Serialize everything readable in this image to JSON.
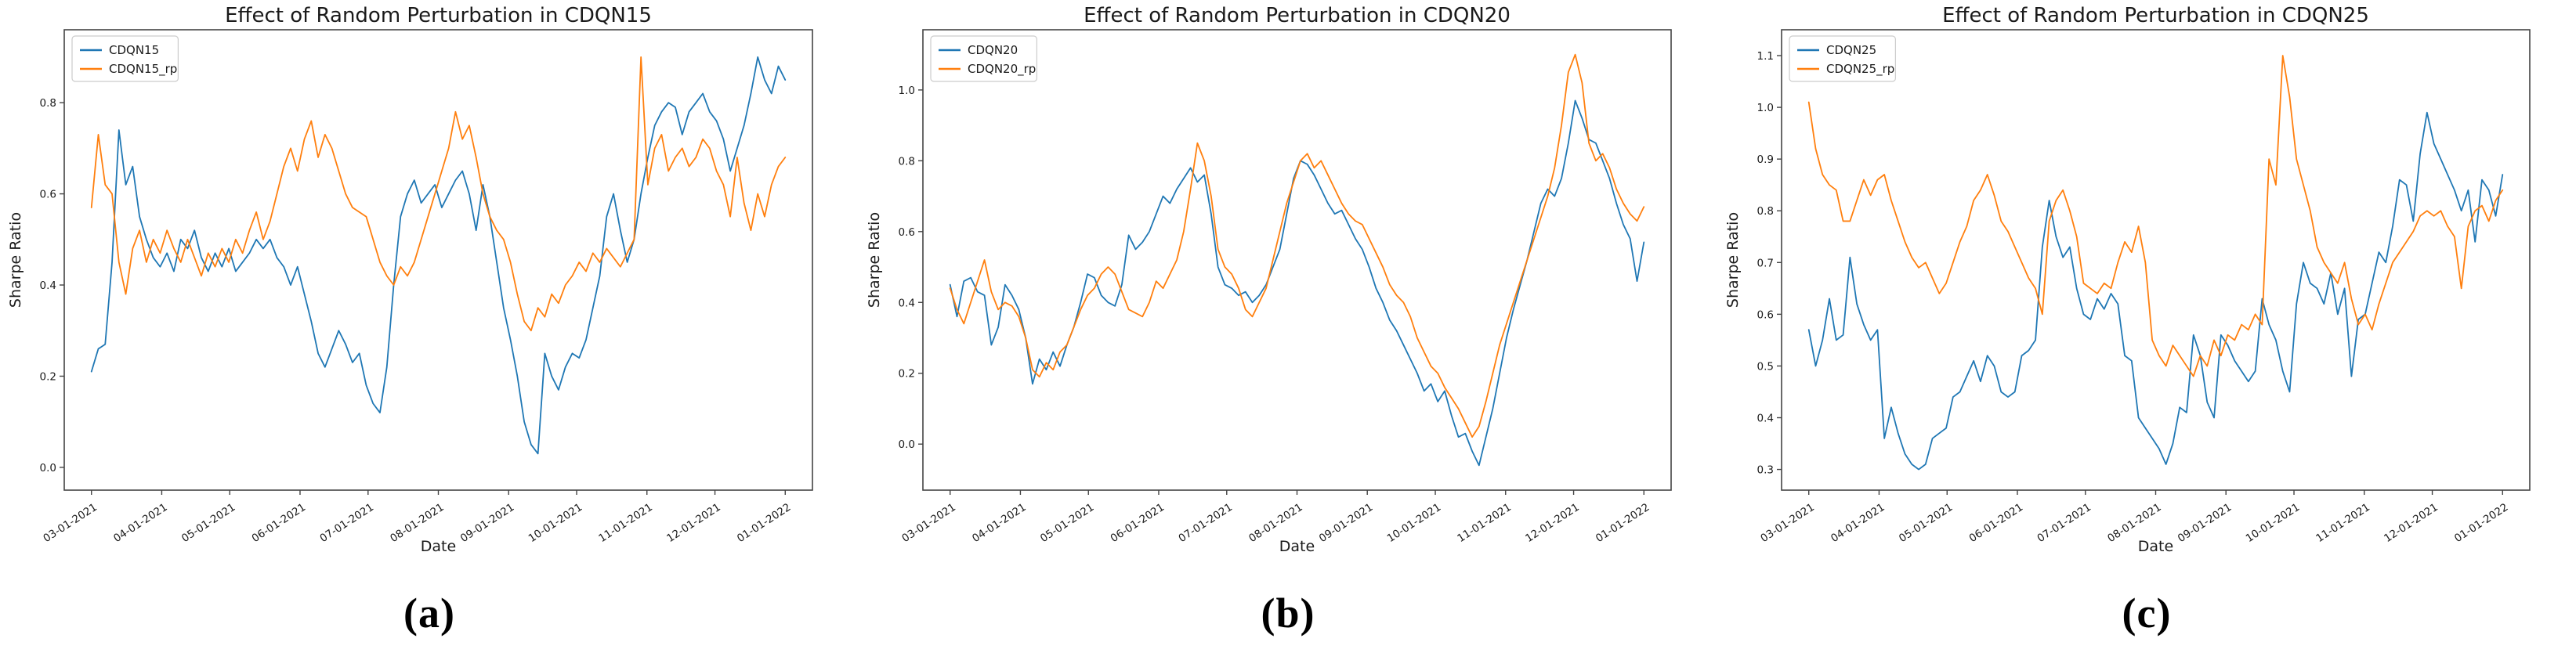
{
  "figure": {
    "captions": [
      "(a)",
      "(b)",
      "(c)"
    ]
  },
  "chart_data": [
    {
      "type": "line",
      "title": "Effect of Random Perturbation in CDQN15",
      "xlabel": "Date",
      "ylabel": "Sharpe Ratio",
      "legend_position": "upper left",
      "grid": false,
      "x_tick_labels": [
        "03-01-2021",
        "04-01-2021",
        "05-01-2021",
        "06-01-2021",
        "07-01-2021",
        "08-01-2021",
        "09-01-2021",
        "10-01-2021",
        "11-01-2021",
        "12-01-2021",
        "01-01-2022"
      ],
      "x_tick_days": [
        0,
        31,
        61,
        92,
        122,
        153,
        184,
        214,
        245,
        275,
        306
      ],
      "x_span_days": 306,
      "x_margin_days": 12,
      "ylim": [
        -0.05,
        0.96
      ],
      "y_tick_values": [
        0.0,
        0.2,
        0.4,
        0.6,
        0.8
      ],
      "y_tick_labels": [
        "0.0",
        "0.2",
        "0.4",
        "0.6",
        "0.8"
      ],
      "series": [
        {
          "name": "CDQN15",
          "color": "#1f77b4",
          "values": [
            0.21,
            0.26,
            0.27,
            0.45,
            0.74,
            0.62,
            0.66,
            0.55,
            0.5,
            0.46,
            0.44,
            0.47,
            0.43,
            0.5,
            0.48,
            0.52,
            0.46,
            0.43,
            0.47,
            0.44,
            0.48,
            0.43,
            0.45,
            0.47,
            0.5,
            0.48,
            0.5,
            0.46,
            0.44,
            0.4,
            0.44,
            0.38,
            0.32,
            0.25,
            0.22,
            0.26,
            0.3,
            0.27,
            0.23,
            0.25,
            0.18,
            0.14,
            0.12,
            0.22,
            0.4,
            0.55,
            0.6,
            0.63,
            0.58,
            0.6,
            0.62,
            0.57,
            0.6,
            0.63,
            0.65,
            0.6,
            0.52,
            0.62,
            0.55,
            0.45,
            0.35,
            0.28,
            0.2,
            0.1,
            0.05,
            0.03,
            0.25,
            0.2,
            0.17,
            0.22,
            0.25,
            0.24,
            0.28,
            0.35,
            0.42,
            0.55,
            0.6,
            0.52,
            0.45,
            0.5,
            0.6,
            0.68,
            0.75,
            0.78,
            0.8,
            0.79,
            0.73,
            0.78,
            0.8,
            0.82,
            0.78,
            0.76,
            0.72,
            0.65,
            0.7,
            0.75,
            0.82,
            0.9,
            0.85,
            0.82,
            0.88,
            0.85
          ]
        },
        {
          "name": "CDQN15_rp",
          "color": "#ff7f0e",
          "values": [
            0.57,
            0.73,
            0.62,
            0.6,
            0.45,
            0.38,
            0.48,
            0.52,
            0.45,
            0.5,
            0.47,
            0.52,
            0.48,
            0.45,
            0.5,
            0.46,
            0.42,
            0.47,
            0.44,
            0.48,
            0.45,
            0.5,
            0.47,
            0.52,
            0.56,
            0.5,
            0.54,
            0.6,
            0.66,
            0.7,
            0.65,
            0.72,
            0.76,
            0.68,
            0.73,
            0.7,
            0.65,
            0.6,
            0.57,
            0.56,
            0.55,
            0.5,
            0.45,
            0.42,
            0.4,
            0.44,
            0.42,
            0.45,
            0.5,
            0.55,
            0.6,
            0.65,
            0.7,
            0.78,
            0.72,
            0.75,
            0.68,
            0.6,
            0.55,
            0.52,
            0.5,
            0.45,
            0.38,
            0.32,
            0.3,
            0.35,
            0.33,
            0.38,
            0.36,
            0.4,
            0.42,
            0.45,
            0.43,
            0.47,
            0.45,
            0.48,
            0.46,
            0.44,
            0.47,
            0.5,
            0.9,
            0.62,
            0.7,
            0.73,
            0.65,
            0.68,
            0.7,
            0.66,
            0.68,
            0.72,
            0.7,
            0.65,
            0.62,
            0.55,
            0.68,
            0.58,
            0.52,
            0.6,
            0.55,
            0.62,
            0.66,
            0.68
          ]
        }
      ]
    },
    {
      "type": "line",
      "title": "Effect of Random Perturbation in CDQN20",
      "xlabel": "Date",
      "ylabel": "Sharpe Ratio",
      "legend_position": "upper left",
      "grid": false,
      "x_tick_labels": [
        "03-01-2021",
        "04-01-2021",
        "05-01-2021",
        "06-01-2021",
        "07-01-2021",
        "08-01-2021",
        "09-01-2021",
        "10-01-2021",
        "11-01-2021",
        "12-01-2021",
        "01-01-2022"
      ],
      "x_tick_days": [
        0,
        31,
        61,
        92,
        122,
        153,
        184,
        214,
        245,
        275,
        306
      ],
      "x_span_days": 306,
      "x_margin_days": 12,
      "ylim": [
        -0.13,
        1.17
      ],
      "y_tick_values": [
        0.0,
        0.2,
        0.4,
        0.6,
        0.8,
        1.0
      ],
      "y_tick_labels": [
        "0.0",
        "0.2",
        "0.4",
        "0.6",
        "0.8",
        "1.0"
      ],
      "series": [
        {
          "name": "CDQN20",
          "color": "#1f77b4",
          "values": [
            0.45,
            0.36,
            0.46,
            0.47,
            0.43,
            0.42,
            0.28,
            0.33,
            0.45,
            0.42,
            0.38,
            0.3,
            0.17,
            0.24,
            0.21,
            0.26,
            0.22,
            0.28,
            0.33,
            0.4,
            0.48,
            0.47,
            0.42,
            0.4,
            0.39,
            0.45,
            0.59,
            0.55,
            0.57,
            0.6,
            0.65,
            0.7,
            0.68,
            0.72,
            0.75,
            0.78,
            0.74,
            0.76,
            0.65,
            0.5,
            0.45,
            0.44,
            0.42,
            0.43,
            0.4,
            0.42,
            0.45,
            0.5,
            0.55,
            0.65,
            0.75,
            0.8,
            0.79,
            0.76,
            0.72,
            0.68,
            0.65,
            0.66,
            0.62,
            0.58,
            0.55,
            0.5,
            0.44,
            0.4,
            0.35,
            0.32,
            0.28,
            0.24,
            0.2,
            0.15,
            0.17,
            0.12,
            0.15,
            0.08,
            0.02,
            0.03,
            -0.02,
            -0.06,
            0.02,
            0.1,
            0.2,
            0.3,
            0.38,
            0.45,
            0.52,
            0.6,
            0.68,
            0.72,
            0.7,
            0.75,
            0.85,
            0.97,
            0.92,
            0.86,
            0.85,
            0.8,
            0.75,
            0.68,
            0.62,
            0.58,
            0.46,
            0.57
          ]
        },
        {
          "name": "CDQN20_rp",
          "color": "#ff7f0e",
          "values": [
            0.44,
            0.38,
            0.34,
            0.4,
            0.46,
            0.52,
            0.43,
            0.38,
            0.4,
            0.39,
            0.36,
            0.3,
            0.21,
            0.19,
            0.23,
            0.21,
            0.26,
            0.28,
            0.33,
            0.38,
            0.42,
            0.44,
            0.48,
            0.5,
            0.48,
            0.43,
            0.38,
            0.37,
            0.36,
            0.4,
            0.46,
            0.44,
            0.48,
            0.52,
            0.6,
            0.72,
            0.85,
            0.8,
            0.7,
            0.55,
            0.5,
            0.48,
            0.44,
            0.38,
            0.36,
            0.4,
            0.44,
            0.52,
            0.6,
            0.68,
            0.74,
            0.8,
            0.82,
            0.78,
            0.8,
            0.76,
            0.72,
            0.68,
            0.65,
            0.63,
            0.62,
            0.58,
            0.54,
            0.5,
            0.45,
            0.42,
            0.4,
            0.36,
            0.3,
            0.26,
            0.22,
            0.2,
            0.16,
            0.13,
            0.1,
            0.06,
            0.02,
            0.05,
            0.12,
            0.2,
            0.28,
            0.34,
            0.4,
            0.46,
            0.52,
            0.58,
            0.64,
            0.7,
            0.78,
            0.9,
            1.05,
            1.1,
            1.02,
            0.85,
            0.8,
            0.82,
            0.78,
            0.72,
            0.68,
            0.65,
            0.63,
            0.67
          ]
        }
      ]
    },
    {
      "type": "line",
      "title": "Effect of Random Perturbation in CDQN25",
      "xlabel": "Date",
      "ylabel": "Sharpe Ratio",
      "legend_position": "upper left",
      "grid": false,
      "x_tick_labels": [
        "03-01-2021",
        "04-01-2021",
        "05-01-2021",
        "06-01-2021",
        "07-01-2021",
        "08-01-2021",
        "09-01-2021",
        "10-01-2021",
        "11-01-2021",
        "12-01-2021",
        "01-01-2022"
      ],
      "x_tick_days": [
        0,
        31,
        61,
        92,
        122,
        153,
        184,
        214,
        245,
        275,
        306
      ],
      "x_span_days": 306,
      "x_margin_days": 12,
      "ylim": [
        0.26,
        1.15
      ],
      "y_tick_values": [
        0.3,
        0.4,
        0.5,
        0.6,
        0.7,
        0.8,
        0.9,
        1.0,
        1.1
      ],
      "y_tick_labels": [
        "0.3",
        "0.4",
        "0.5",
        "0.6",
        "0.7",
        "0.8",
        "0.9",
        "1.0",
        "1.1"
      ],
      "series": [
        {
          "name": "CDQN25",
          "color": "#1f77b4",
          "values": [
            0.57,
            0.5,
            0.55,
            0.63,
            0.55,
            0.56,
            0.71,
            0.62,
            0.58,
            0.55,
            0.57,
            0.36,
            0.42,
            0.37,
            0.33,
            0.31,
            0.3,
            0.31,
            0.36,
            0.37,
            0.38,
            0.44,
            0.45,
            0.48,
            0.51,
            0.47,
            0.52,
            0.5,
            0.45,
            0.44,
            0.45,
            0.52,
            0.53,
            0.55,
            0.73,
            0.82,
            0.75,
            0.71,
            0.73,
            0.65,
            0.6,
            0.59,
            0.63,
            0.61,
            0.64,
            0.62,
            0.52,
            0.51,
            0.4,
            0.38,
            0.36,
            0.34,
            0.31,
            0.35,
            0.42,
            0.41,
            0.56,
            0.52,
            0.43,
            0.4,
            0.56,
            0.54,
            0.51,
            0.49,
            0.47,
            0.49,
            0.63,
            0.58,
            0.55,
            0.49,
            0.45,
            0.62,
            0.7,
            0.66,
            0.65,
            0.62,
            0.68,
            0.6,
            0.65,
            0.48,
            0.59,
            0.6,
            0.66,
            0.72,
            0.7,
            0.77,
            0.86,
            0.85,
            0.78,
            0.91,
            0.99,
            0.93,
            0.9,
            0.87,
            0.84,
            0.8,
            0.84,
            0.74,
            0.86,
            0.84,
            0.79,
            0.87
          ]
        },
        {
          "name": "CDQN25_rp",
          "color": "#ff7f0e",
          "values": [
            1.01,
            0.92,
            0.87,
            0.85,
            0.84,
            0.78,
            0.78,
            0.82,
            0.86,
            0.83,
            0.86,
            0.87,
            0.82,
            0.78,
            0.74,
            0.71,
            0.69,
            0.7,
            0.67,
            0.64,
            0.66,
            0.7,
            0.74,
            0.77,
            0.82,
            0.84,
            0.87,
            0.83,
            0.78,
            0.76,
            0.73,
            0.7,
            0.67,
            0.65,
            0.6,
            0.78,
            0.82,
            0.84,
            0.8,
            0.75,
            0.66,
            0.65,
            0.64,
            0.66,
            0.65,
            0.7,
            0.74,
            0.72,
            0.77,
            0.7,
            0.55,
            0.52,
            0.5,
            0.54,
            0.52,
            0.5,
            0.48,
            0.52,
            0.5,
            0.55,
            0.52,
            0.56,
            0.55,
            0.58,
            0.57,
            0.6,
            0.58,
            0.9,
            0.85,
            1.1,
            1.02,
            0.9,
            0.85,
            0.8,
            0.73,
            0.7,
            0.68,
            0.66,
            0.7,
            0.63,
            0.58,
            0.6,
            0.57,
            0.62,
            0.66,
            0.7,
            0.72,
            0.74,
            0.76,
            0.79,
            0.8,
            0.79,
            0.8,
            0.77,
            0.75,
            0.65,
            0.77,
            0.8,
            0.81,
            0.78,
            0.82,
            0.84
          ]
        }
      ]
    }
  ],
  "style": {
    "spine_color": "#444444",
    "text_color": "#1a1a1a",
    "legend_border_color": "#cccccc"
  }
}
